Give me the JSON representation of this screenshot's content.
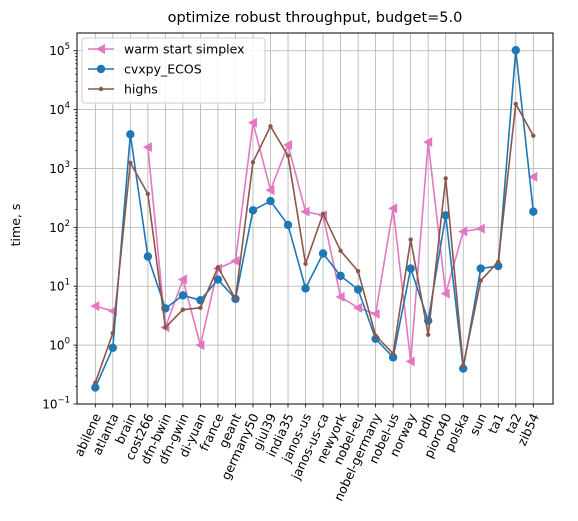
{
  "chart_data": {
    "type": "line",
    "title": "optimize robust throughput, budget=5.0",
    "xlabel": "",
    "ylabel": "time, s",
    "yscale": "log",
    "ylim": [
      0.1,
      200000
    ],
    "yticks": [
      {
        "value": 0.1,
        "base": "10",
        "exp": "−1"
      },
      {
        "value": 1,
        "base": "10",
        "exp": "0"
      },
      {
        "value": 10,
        "base": "10",
        "exp": "1"
      },
      {
        "value": 100,
        "base": "10",
        "exp": "2"
      },
      {
        "value": 1000,
        "base": "10",
        "exp": "3"
      },
      {
        "value": 10000,
        "base": "10",
        "exp": "4"
      },
      {
        "value": 100000,
        "base": "10",
        "exp": "5"
      }
    ],
    "grid": true,
    "legend_position": "upper-left",
    "categories": [
      "abilene",
      "atlanta",
      "brain",
      "cost266",
      "dfn-bwin",
      "dfn-gwin",
      "di-yuan",
      "france",
      "geant",
      "germany50",
      "giul39",
      "india35",
      "janos-us",
      "janos-us-ca",
      "newyork",
      "nobel-eu",
      "nobel-germany",
      "nobel-us",
      "norway",
      "pdh",
      "pioro40",
      "polska",
      "sun",
      "ta1",
      "ta2",
      "zib54"
    ],
    "series": [
      {
        "name": "warm start simplex",
        "color": "#e377c2",
        "marker": "triangle-left",
        "values": [
          4.6,
          3.8,
          null,
          2300,
          2.0,
          13,
          1.0,
          20,
          27,
          6000,
          430,
          2500,
          185,
          160,
          6.6,
          4.3,
          3.4,
          210,
          0.53,
          2800,
          7.5,
          85,
          95,
          null,
          null,
          720
        ]
      },
      {
        "name": "cvxpy_ECOS",
        "color": "#1f77b4",
        "marker": "circle",
        "values": [
          0.19,
          0.9,
          3800,
          32,
          4.2,
          7.0,
          5.8,
          13,
          6.1,
          195,
          280,
          110,
          9.2,
          36,
          15,
          8.8,
          1.28,
          0.62,
          20,
          2.6,
          160,
          0.4,
          20,
          22,
          102000,
          185
        ]
      },
      {
        "name": "highs",
        "color": "#8c564b",
        "marker": "point",
        "values": [
          0.23,
          1.6,
          1250,
          370,
          2.0,
          4.0,
          4.3,
          21,
          6.1,
          1280,
          5200,
          1650,
          24,
          170,
          40,
          18,
          1.45,
          0.72,
          62,
          1.5,
          680,
          0.45,
          12.5,
          26,
          12500,
          3600
        ]
      }
    ]
  }
}
